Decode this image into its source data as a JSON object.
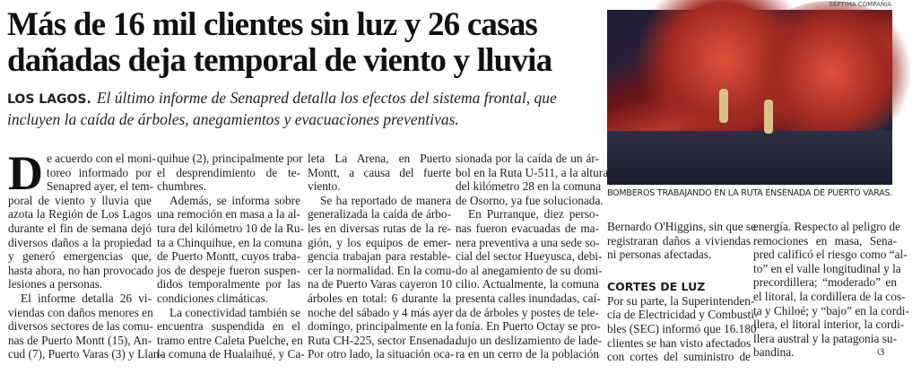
{
  "article": {
    "headline": "Más de 16 mil clientes sin luz y 26 casas dañadas deja temporal de viento y lluvia",
    "kicker": "LOS LAGOS.",
    "lead": "El último informe de Senapred detalla los efectos del sistema frontal, que incluyen la caída de árboles, anegamientos y evacuaciones preventivas.",
    "photo_credit": "SÉPTIMA COMPAÑÍA",
    "photo_caption": "BOMBEROS TRABAJANDO EN LA RUTA ENSENADA DE PUERTO VARAS.",
    "drop_cap": "D",
    "end_mark": "ଓ",
    "columns": [
      {
        "paragraphs": [
          [
            "e acuerdo con el moni-",
            "toreo informado por",
            "Senapred ayer, el tem-",
            "poral de viento y lluvia que",
            "azota la Región de Los Lagos",
            "durante el fin de semana dejó",
            "diversos daños a la propiedad",
            "y generó emergencias que,",
            "hasta ahora, no han provocado",
            "lesiones a personas."
          ],
          [
            "El informe detalla 26 vi-",
            "viendas con daños menores en",
            "diversos sectores de las comu-",
            "nas de Puerto Montt (15), An-",
            "cud (7), Puerto Varas (3) y Llan-"
          ]
        ]
      },
      {
        "paragraphs": [
          [
            "quihue (2), principalmente por",
            "el desprendimiento de te-",
            "chumbres."
          ],
          [
            "Además, se informa sobre",
            "una remoción en masa a la al-",
            "tura del kilómetro 10 de la Ru-",
            "ta a Chinquihue, en la comuna",
            "de Puerto Montt, cuyos traba-",
            "jos de despeje fueron suspen-",
            "didos temporalmente por las",
            "condiciones climáticas."
          ],
          [
            "La conectividad también se",
            "encuentra suspendida en el",
            "tramo entre Caleta Puelche, en",
            "la comuna de Hualaihué, y Ca-"
          ]
        ]
      },
      {
        "paragraphs": [
          [
            "leta La Arena, en Puerto",
            "Montt, a causa del fuerte",
            "viento."
          ],
          [
            "Se ha reportado de manera",
            "generalizada la caída de árbo-",
            "les en diversas rutas de la re-",
            "gión, y los equipos de emer-",
            "gencia trabajan para restable-",
            "cer la normalidad. En la comu-",
            "na de Puerto Varas cayeron 10",
            "árboles en total: 6 durante la",
            "noche del sábado y 4 más ayer",
            "domingo, principalmente en la",
            "Ruta CH-225, sector Ensenada.",
            "Por otro lado, la situación oca-"
          ]
        ]
      },
      {
        "paragraphs": [
          [
            "sionada por la caída de un ár-",
            "bol en la Ruta U-511, a la altura",
            "del kilómetro 28 en la comuna",
            "de Osorno, ya fue solucionada."
          ],
          [
            "En Purranque, diez perso-",
            "nas fueron evacuadas de ma-",
            "nera preventiva a una sede so-",
            "cial del sector Hueyusca, debi-",
            "do al anegamiento de su domi-",
            "cilio. Actualmente, la comuna",
            "presenta calles inundadas, caí-",
            "da de árboles y postes de tele-",
            "fonía. En Puerto Octay se pro-",
            "dujo un deslizamiento de lade-",
            "ra en un cerro de la población"
          ]
        ]
      },
      {
        "paragraphs": [
          [
            "Bernardo O'Higgins, sin que se",
            "registraran daños a viviendas",
            "ni personas afectadas."
          ],
          [
            "Por su parte, la Superintenden-",
            "cia de Electricidad y Combusti-",
            "bles (SEC) informó que 16.180",
            "clientes se han visto afectados",
            "con cortes del suministro de"
          ]
        ],
        "subhead": "CORTES DE LUZ"
      },
      {
        "paragraphs": [
          [
            "energía. Respecto al peligro de",
            "remociones en masa, Sena-",
            "pred calificó el riesgo como “al-",
            "to” en el valle longitudinal y la",
            "precordillera; “moderado” en",
            "el litoral, la cordillera de la cos-",
            "ta y Chiloé; y “bajo” en la cordi-",
            "llera, el litoral interior, la cordi-",
            "llera austral y la patagonia su-",
            "bandina."
          ]
        ]
      }
    ]
  }
}
